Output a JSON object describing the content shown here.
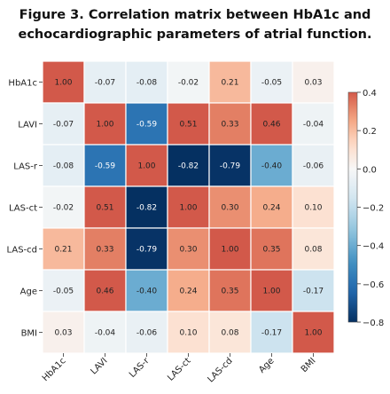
{
  "figure": {
    "title_line1": "Figure 3. Correlation matrix between HbA1c and",
    "title_line2": "echocardiographic parameters of atrial function."
  },
  "chart_data": {
    "type": "heatmap",
    "labels": [
      "HbA1c",
      "LAVI",
      "LAS-r",
      "LAS-ct",
      "LAS-cd",
      "Age",
      "BMI"
    ],
    "matrix": [
      [
        1.0,
        -0.07,
        -0.08,
        -0.02,
        0.21,
        -0.05,
        0.03
      ],
      [
        -0.07,
        1.0,
        -0.59,
        0.51,
        0.33,
        0.46,
        -0.04
      ],
      [
        -0.08,
        -0.59,
        1.0,
        -0.82,
        -0.79,
        -0.4,
        -0.06
      ],
      [
        -0.02,
        0.51,
        -0.82,
        1.0,
        0.3,
        0.24,
        0.1
      ],
      [
        0.21,
        0.33,
        -0.79,
        0.3,
        1.0,
        0.35,
        0.08
      ],
      [
        -0.05,
        0.46,
        -0.4,
        0.24,
        0.35,
        1.0,
        -0.17
      ],
      [
        0.03,
        -0.04,
        -0.06,
        0.1,
        0.08,
        -0.17,
        1.0
      ]
    ],
    "colorbar": {
      "range": [
        -0.8,
        0.4
      ],
      "ticks": [
        "0.4",
        "0.2",
        "0.0",
        "−0.2",
        "−0.4",
        "−0.6",
        "−0.8"
      ],
      "colormap": "RdBu_r"
    },
    "grid_lines": "white"
  }
}
